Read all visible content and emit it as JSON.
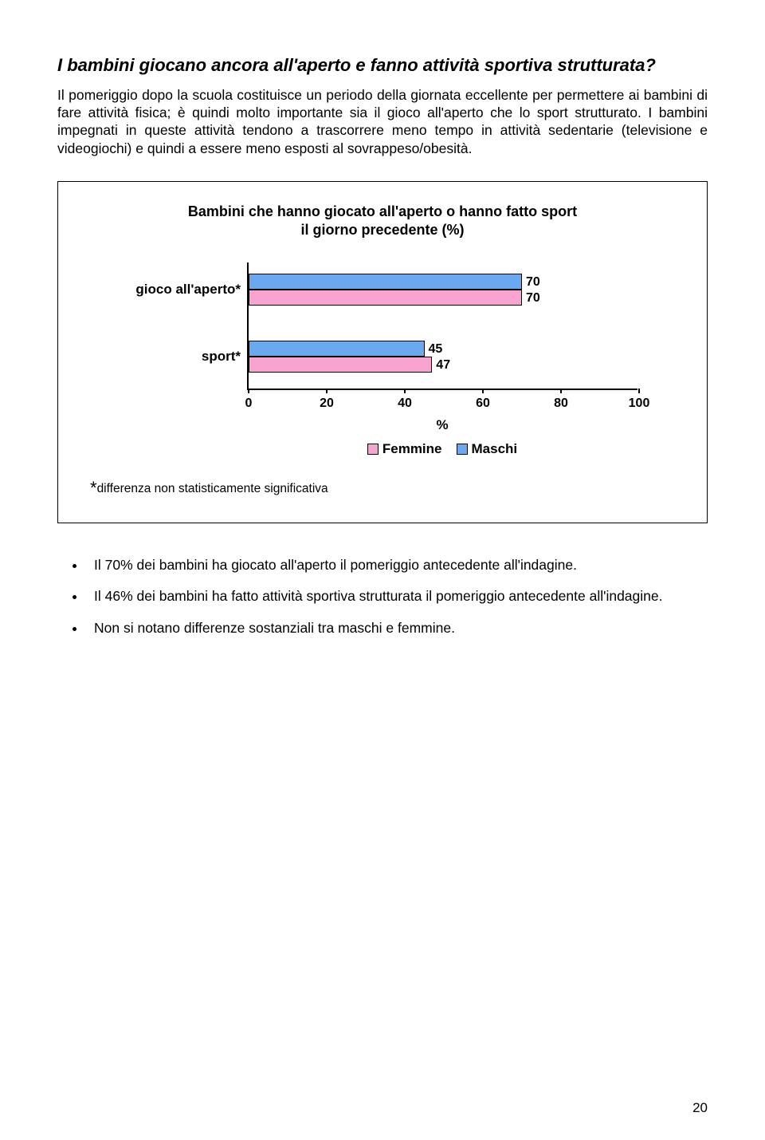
{
  "heading": "I bambini giocano ancora all'aperto e fanno attività sportiva strutturata?",
  "para": "Il pomeriggio dopo la scuola costituisce un periodo della giornata eccellente per permettere ai bambini di fare attività fisica; è quindi molto importante sia il gioco all'aperto che lo sport strutturato. I bambini impegnati in queste attività tendono a trascorrere meno tempo in attività sedentarie (televisione e videogiochi) e quindi a essere meno esposti al sovrappeso/obesità.",
  "chart": {
    "title_line1": "Bambini che hanno giocato all'aperto o hanno fatto sport",
    "title_line2": "il giorno precedente (%)",
    "categories": [
      "gioco all'aperto*",
      "sport*"
    ],
    "series": [
      {
        "name": "Maschi",
        "color": "#6aa8f0",
        "values": [
          70,
          45
        ]
      },
      {
        "name": "Femmine",
        "color": "#f8a3d0",
        "values": [
          70,
          47
        ]
      }
    ],
    "xmax": 100,
    "xticks": [
      0,
      20,
      40,
      60,
      80,
      100
    ],
    "xlabel": "%",
    "legend_order": [
      "Femmine",
      "Maschi"
    ],
    "footnote": "differenza non statisticamente significativa"
  },
  "bullets": [
    "Il 70% dei bambini ha giocato all'aperto il pomeriggio antecedente all'indagine.",
    "Il 46% dei bambini ha fatto attività sportiva strutturata il pomeriggio antecedente all'indagine.",
    "Non si notano differenze sostanziali tra maschi e femmine."
  ],
  "page_number": "20"
}
